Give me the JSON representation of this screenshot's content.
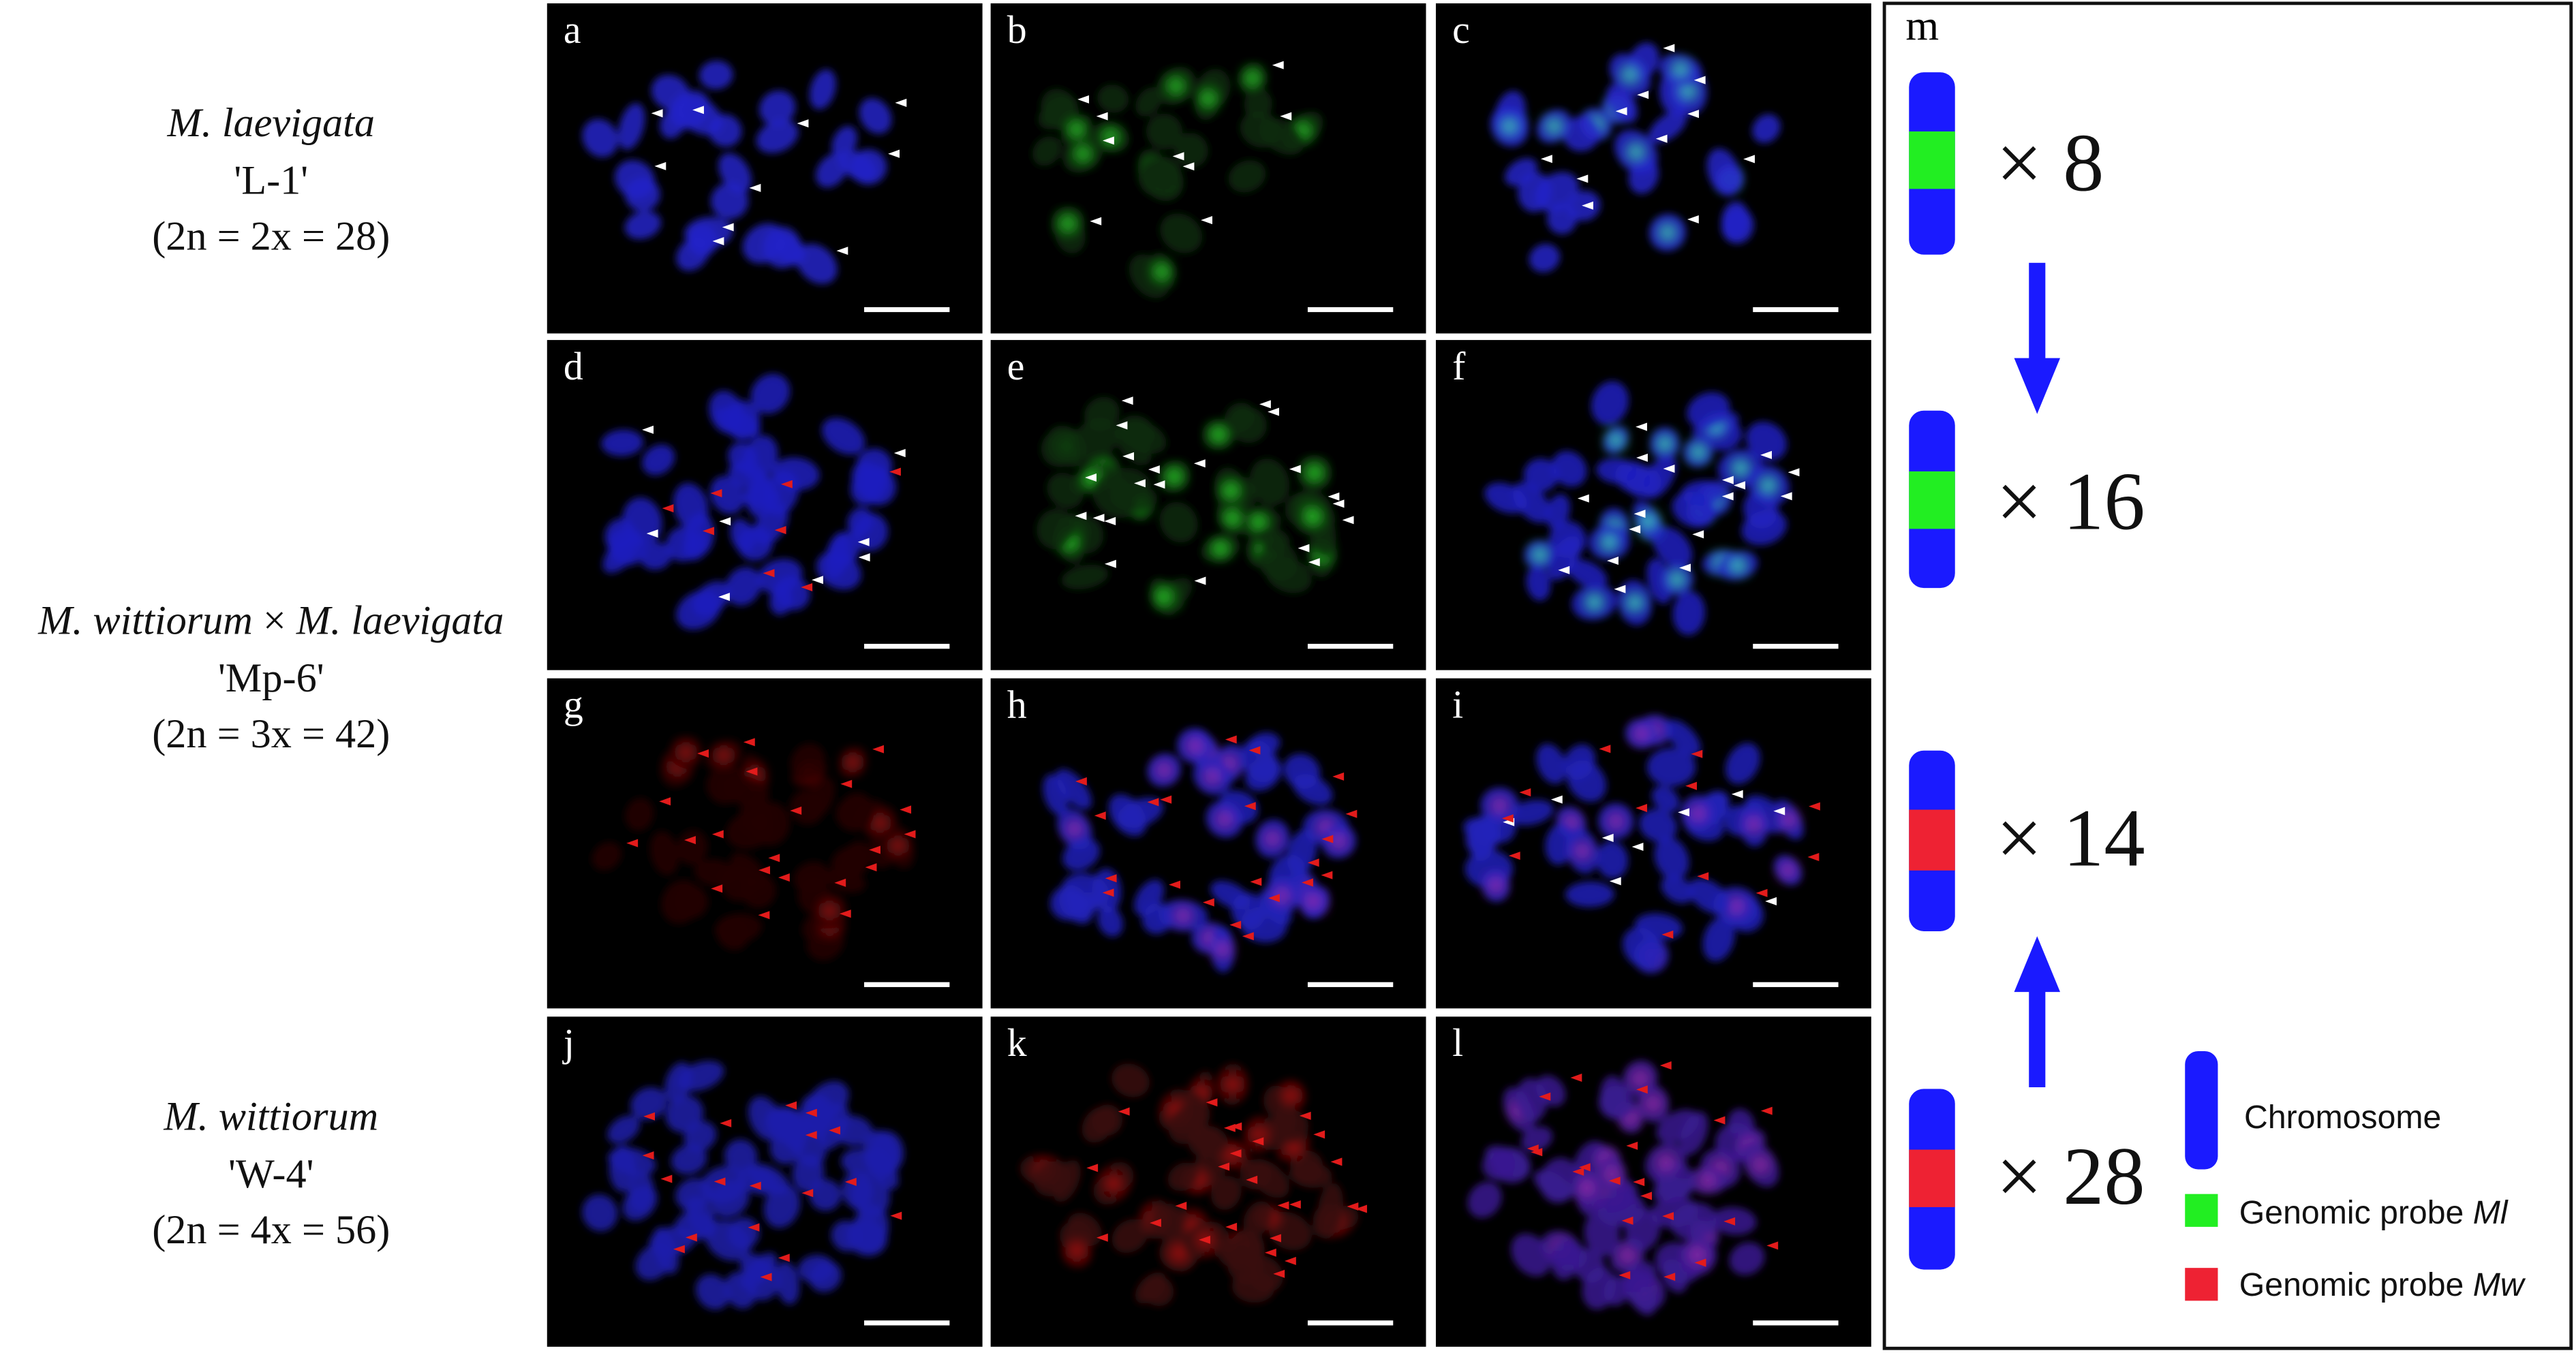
{
  "row_labels": [
    {
      "name_parts": [
        {
          "text": "M. laevigata",
          "italic": true
        }
      ],
      "cultivar": "'L-1'",
      "ploidy": "(2n = 2x = 28)"
    },
    {
      "name_parts": [
        {
          "text": "M. wittiorum",
          "italic": true
        },
        {
          "text": " × ",
          "italic": false
        },
        {
          "text": "M. laevigata",
          "italic": true
        }
      ],
      "cultivar": "'Mp-6'",
      "ploidy": "(2n = 3x = 42)"
    },
    {
      "name_parts": [
        {
          "text": "M. wittiorum",
          "italic": true
        }
      ],
      "cultivar": "'W-4'",
      "ploidy": "(2n = 4x = 56)"
    }
  ],
  "panels": [
    "a",
    "b",
    "c",
    "d",
    "e",
    "f",
    "g",
    "h",
    "i",
    "j",
    "k",
    "l"
  ],
  "diagram": {
    "label": "m",
    "multipliers": [
      "×  8",
      "× 16",
      "× 14",
      "× 28"
    ],
    "legend": [
      {
        "parts": [
          {
            "text": "Chromosome",
            "italic": false
          }
        ]
      },
      {
        "parts": [
          {
            "text": "Genomic probe ",
            "italic": false
          },
          {
            "text": "Ml",
            "italic": true
          }
        ]
      },
      {
        "parts": [
          {
            "text": "Genomic probe ",
            "italic": false
          },
          {
            "text": "Mw",
            "italic": true
          }
        ]
      }
    ]
  }
}
